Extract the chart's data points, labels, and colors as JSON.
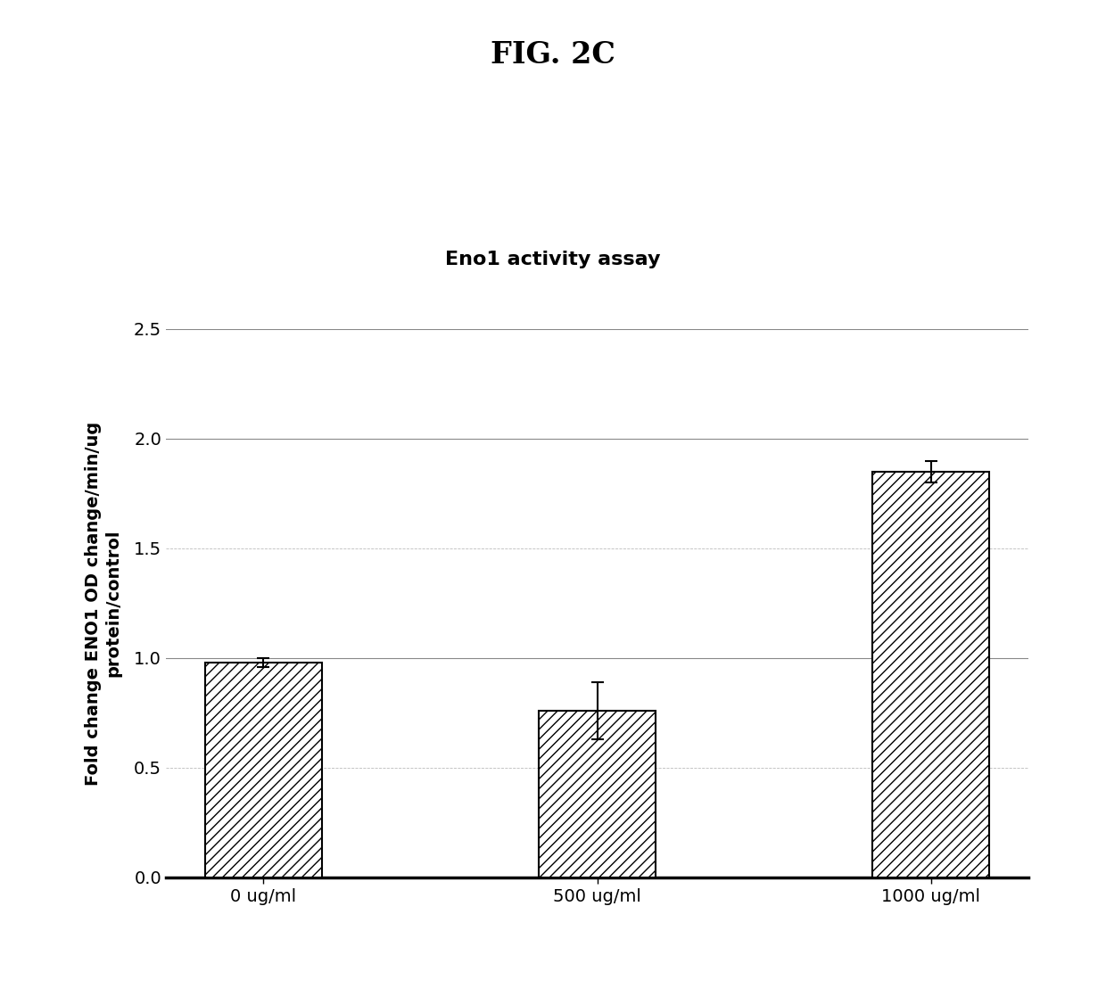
{
  "title": "FIG. 2C",
  "chart_title": "Eno1 activity assay",
  "categories": [
    "0 ug/ml",
    "500 ug/ml",
    "1000 ug/ml"
  ],
  "values": [
    0.98,
    0.76,
    1.85
  ],
  "errors": [
    0.02,
    0.13,
    0.05
  ],
  "ylabel_line1": "Fold change ENO1 OD change/min/ug",
  "ylabel_line2": "protein/control",
  "ylim": [
    0,
    2.5
  ],
  "yticks_major": [
    0.0,
    0.5,
    1.0,
    1.5,
    2.0,
    2.5
  ],
  "bar_color": "#ffffff",
  "bar_edgecolor": "#000000",
  "hatch": "///",
  "background_color": "#ffffff",
  "title_fontsize": 24,
  "chart_title_fontsize": 16,
  "ylabel_fontsize": 14,
  "xlabel_fontsize": 14,
  "tick_fontsize": 14,
  "bar_width": 0.35,
  "solid_grid_color": "#888888",
  "dashed_grid_color": "#bbbbbb",
  "grid_linewidth_solid": 0.8,
  "grid_linewidth_dashed": 0.6
}
